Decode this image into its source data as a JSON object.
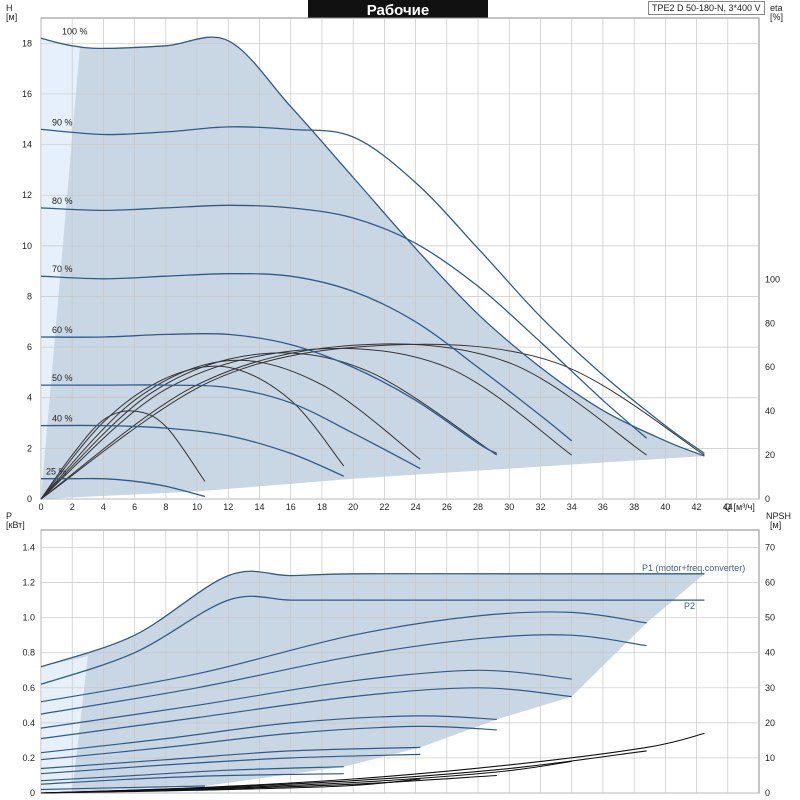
{
  "title": "Рабочие характеристики",
  "model": "TPE2 D 50-180-N, 3*400 V",
  "colors": {
    "envelope": "#c9d6e3",
    "envelope_light": "#e6f0fa",
    "curve": "#2f5b8b",
    "eta": "#333333",
    "grid": "#c8c8c8"
  },
  "chart_data": [
    {
      "type": "line",
      "panel": "Q-H",
      "left_axis_label": "H",
      "left_axis_unit": "[м]",
      "right_axis_label": "eta",
      "right_axis_unit": "[%]",
      "x_axis_label": "Q [м³/ч]",
      "xlim": [
        0,
        46
      ],
      "ylim": [
        0,
        19
      ],
      "eta_lim": [
        0,
        100
      ],
      "x_ticks": [
        "0",
        "2",
        "4",
        "6",
        "8",
        "10",
        "12",
        "14",
        "16",
        "18",
        "20",
        "22",
        "24",
        "26",
        "28",
        "30",
        "32",
        "34",
        "36",
        "38",
        "40",
        "42",
        "44"
      ],
      "y_ticks": [
        "0",
        "2",
        "4",
        "6",
        "8",
        "10",
        "12",
        "14",
        "16",
        "18"
      ],
      "eta_ticks": [
        "0",
        "20",
        "40",
        "60",
        "80",
        "100"
      ],
      "speed_labels": [
        "100 %",
        "90 %",
        "80 %",
        "70 %",
        "60 %",
        "50 %",
        "40 %",
        "25 %"
      ],
      "series": [
        {
          "name": "100 %",
          "x": [
            0,
            2,
            4,
            8,
            12,
            16,
            20,
            24,
            28,
            32,
            36,
            40,
            42.5
          ],
          "y": [
            18.2,
            17.9,
            17.8,
            17.9,
            18.1,
            15.5,
            12.7,
            9.9,
            7.3,
            5.2,
            3.5,
            2.3,
            1.7
          ]
        },
        {
          "name": "90 %",
          "x": [
            0,
            4,
            8,
            12,
            16,
            20,
            24,
            28,
            32,
            36,
            40,
            42.5
          ],
          "y": [
            14.6,
            14.4,
            14.5,
            14.7,
            14.6,
            14.3,
            12.5,
            9.9,
            7.2,
            4.9,
            2.9,
            1.8
          ]
        },
        {
          "name": "80 %",
          "x": [
            0,
            4,
            8,
            12,
            16,
            20,
            24,
            28,
            32,
            36,
            38.8
          ],
          "y": [
            11.5,
            11.4,
            11.5,
            11.6,
            11.5,
            11.1,
            10.1,
            8.4,
            6.2,
            3.9,
            2.4
          ]
        },
        {
          "name": "70 %",
          "x": [
            0,
            4,
            8,
            12,
            16,
            20,
            24,
            28,
            32,
            34
          ],
          "y": [
            8.8,
            8.7,
            8.8,
            8.9,
            8.8,
            8.2,
            7.0,
            5.2,
            3.3,
            2.3
          ]
        },
        {
          "name": "60 %",
          "x": [
            0,
            4,
            8,
            12,
            16,
            20,
            24,
            28,
            29.2
          ],
          "y": [
            6.4,
            6.4,
            6.5,
            6.5,
            6.1,
            5.2,
            3.9,
            2.2,
            1.8
          ]
        },
        {
          "name": "50 %",
          "x": [
            0,
            4,
            8,
            12,
            16,
            20,
            24.3
          ],
          "y": [
            4.5,
            4.5,
            4.5,
            4.4,
            3.8,
            2.6,
            1.2
          ]
        },
        {
          "name": "40 %",
          "x": [
            0,
            4,
            8,
            12,
            16,
            19.4
          ],
          "y": [
            2.9,
            2.9,
            2.8,
            2.5,
            1.8,
            0.9
          ]
        },
        {
          "name": "25 %",
          "x": [
            0,
            2,
            4,
            6,
            8,
            10.5
          ],
          "y": [
            0.8,
            0.8,
            0.8,
            0.7,
            0.5,
            0.1
          ]
        }
      ],
      "eta_series": [
        {
          "x": [
            0,
            2,
            4,
            6,
            8,
            10.5
          ],
          "y": [
            0,
            20,
            36,
            40,
            33,
            8
          ]
        },
        {
          "x": [
            0,
            4,
            8,
            12,
            16,
            19.4
          ],
          "y": [
            0,
            35,
            55,
            60,
            45,
            15
          ]
        },
        {
          "x": [
            0,
            6,
            12,
            18,
            24.3
          ],
          "y": [
            0,
            45,
            63,
            52,
            18
          ]
        },
        {
          "x": [
            0,
            7,
            14,
            21,
            29.2
          ],
          "y": [
            0,
            48,
            66,
            58,
            20
          ]
        },
        {
          "x": [
            0,
            8,
            17,
            26,
            34
          ],
          "y": [
            0,
            50,
            68,
            60,
            20
          ]
        },
        {
          "x": [
            0,
            10,
            20,
            30,
            38.8
          ],
          "y": [
            0,
            52,
            70,
            62,
            20
          ]
        },
        {
          "x": [
            0,
            11,
            22,
            33,
            42.5
          ],
          "y": [
            0,
            54,
            70,
            62,
            20
          ]
        }
      ]
    },
    {
      "type": "line",
      "panel": "Q-P",
      "left_axis_label": "P",
      "left_axis_unit": "[кВт]",
      "right_axis_label": "NPSH",
      "right_axis_unit": "[м]",
      "xlim": [
        0,
        46
      ],
      "ylim": [
        0,
        1.5
      ],
      "npsh_lim": [
        0,
        75
      ],
      "y_ticks": [
        "0",
        "0.2",
        "0.4",
        "0.6",
        "0.8",
        "1.0",
        "1.2",
        "1.4"
      ],
      "npsh_ticks": [
        "0",
        "10",
        "20",
        "30",
        "40",
        "50",
        "60",
        "70"
      ],
      "legend": [
        "P1 (motor+freq.converter)",
        "P2"
      ],
      "series": [
        {
          "name": "P1 (motor+freq.converter)",
          "x": [
            0,
            6,
            12,
            16,
            20,
            30,
            40,
            42.5
          ],
          "y": [
            0.72,
            0.9,
            1.24,
            1.24,
            1.25,
            1.25,
            1.25,
            1.25
          ]
        },
        {
          "name": "P2",
          "x": [
            0,
            6,
            12,
            16,
            20,
            30,
            40,
            42.5
          ],
          "y": [
            0.62,
            0.8,
            1.1,
            1.1,
            1.1,
            1.1,
            1.1,
            1.1
          ]
        },
        {
          "x": [
            0,
            10,
            20,
            28,
            34,
            38.8
          ],
          "y": [
            0.52,
            0.68,
            0.9,
            1.01,
            1.03,
            0.97
          ]
        },
        {
          "x": [
            0,
            10,
            20,
            28,
            34,
            38.8
          ],
          "y": [
            0.45,
            0.6,
            0.78,
            0.88,
            0.9,
            0.84
          ]
        },
        {
          "x": [
            0,
            10,
            20,
            28,
            34
          ],
          "y": [
            0.37,
            0.5,
            0.64,
            0.7,
            0.65
          ]
        },
        {
          "x": [
            0,
            10,
            20,
            28,
            34
          ],
          "y": [
            0.31,
            0.43,
            0.55,
            0.6,
            0.55
          ]
        },
        {
          "x": [
            0,
            8,
            16,
            24,
            29.2
          ],
          "y": [
            0.23,
            0.31,
            0.4,
            0.44,
            0.42
          ]
        },
        {
          "x": [
            0,
            8,
            16,
            24,
            29.2
          ],
          "y": [
            0.19,
            0.26,
            0.34,
            0.38,
            0.36
          ]
        },
        {
          "x": [
            0,
            8,
            16,
            24.3
          ],
          "y": [
            0.14,
            0.19,
            0.24,
            0.26
          ]
        },
        {
          "x": [
            0,
            8,
            16,
            24.3
          ],
          "y": [
            0.11,
            0.16,
            0.2,
            0.22
          ]
        },
        {
          "x": [
            0,
            6,
            12,
            19.4
          ],
          "y": [
            0.07,
            0.1,
            0.13,
            0.15
          ]
        },
        {
          "x": [
            0,
            6,
            12,
            19.4
          ],
          "y": [
            0.05,
            0.08,
            0.1,
            0.11
          ]
        },
        {
          "x": [
            0,
            5,
            10.5
          ],
          "y": [
            0.02,
            0.03,
            0.04
          ]
        }
      ],
      "npsh_series": [
        {
          "x": [
            0,
            10,
            20,
            30,
            38.8,
            42.5
          ],
          "y": [
            0,
            1.5,
            4,
            8,
            13,
            17
          ]
        },
        {
          "x": [
            0,
            10,
            20,
            30,
            38.8
          ],
          "y": [
            0,
            1.4,
            3.5,
            7,
            12
          ]
        },
        {
          "x": [
            0,
            10,
            20,
            29.2,
            34
          ],
          "y": [
            0,
            1.2,
            3,
            6,
            9
          ]
        },
        {
          "x": [
            0,
            10,
            20,
            29.2
          ],
          "y": [
            0,
            1,
            2.5,
            5
          ]
        },
        {
          "x": [
            0,
            10,
            19.4,
            24.3
          ],
          "y": [
            0,
            0.8,
            2,
            4
          ]
        }
      ]
    }
  ]
}
